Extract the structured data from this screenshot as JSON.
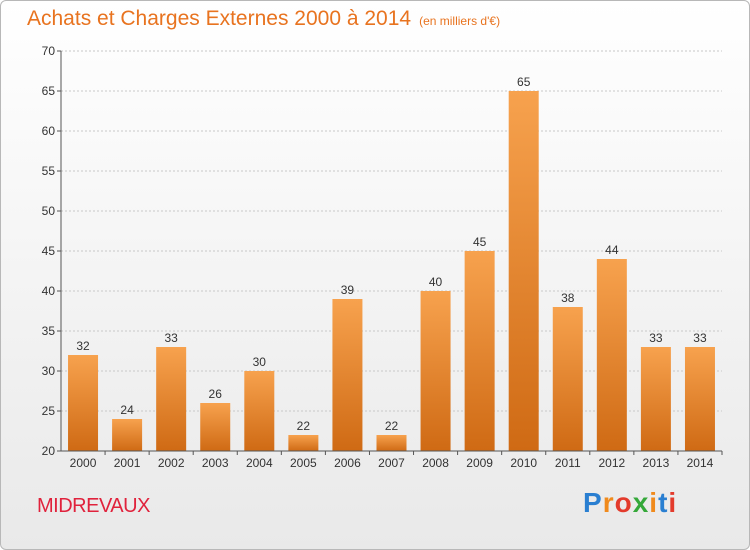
{
  "header": {
    "title": "Achats et Charges Externes 2000 à 2014",
    "subtitle": "(en milliers d'€)"
  },
  "footer": {
    "commune": "MIDREVAUX",
    "logo_letters": [
      "P",
      "r",
      "o",
      "x",
      "i",
      "t",
      "i"
    ],
    "logo_colors": [
      "#2a7fd1",
      "#f08a1c",
      "#e33b2c",
      "#35a83a",
      "#f08a1c",
      "#2a7fd1",
      "#e33b2c"
    ]
  },
  "colors": {
    "bar_top": "#f7a24e",
    "bar_bottom": "#cf6a14",
    "title": "#e8731f"
  },
  "chart_data": {
    "type": "bar",
    "title": "Achats et Charges Externes 2000 à 2014",
    "subtitle": "(en milliers d'€)",
    "categories": [
      "2000",
      "2001",
      "2002",
      "2003",
      "2004",
      "2005",
      "2006",
      "2007",
      "2008",
      "2009",
      "2010",
      "2011",
      "2012",
      "2013",
      "2014"
    ],
    "values": [
      32,
      24,
      33,
      26,
      30,
      22,
      39,
      22,
      40,
      45,
      65,
      38,
      44,
      33,
      33
    ],
    "ylim": [
      20,
      70
    ],
    "yticks": [
      20,
      25,
      30,
      35,
      40,
      45,
      50,
      55,
      60,
      65,
      70
    ],
    "grid": true,
    "data_labels": true
  }
}
